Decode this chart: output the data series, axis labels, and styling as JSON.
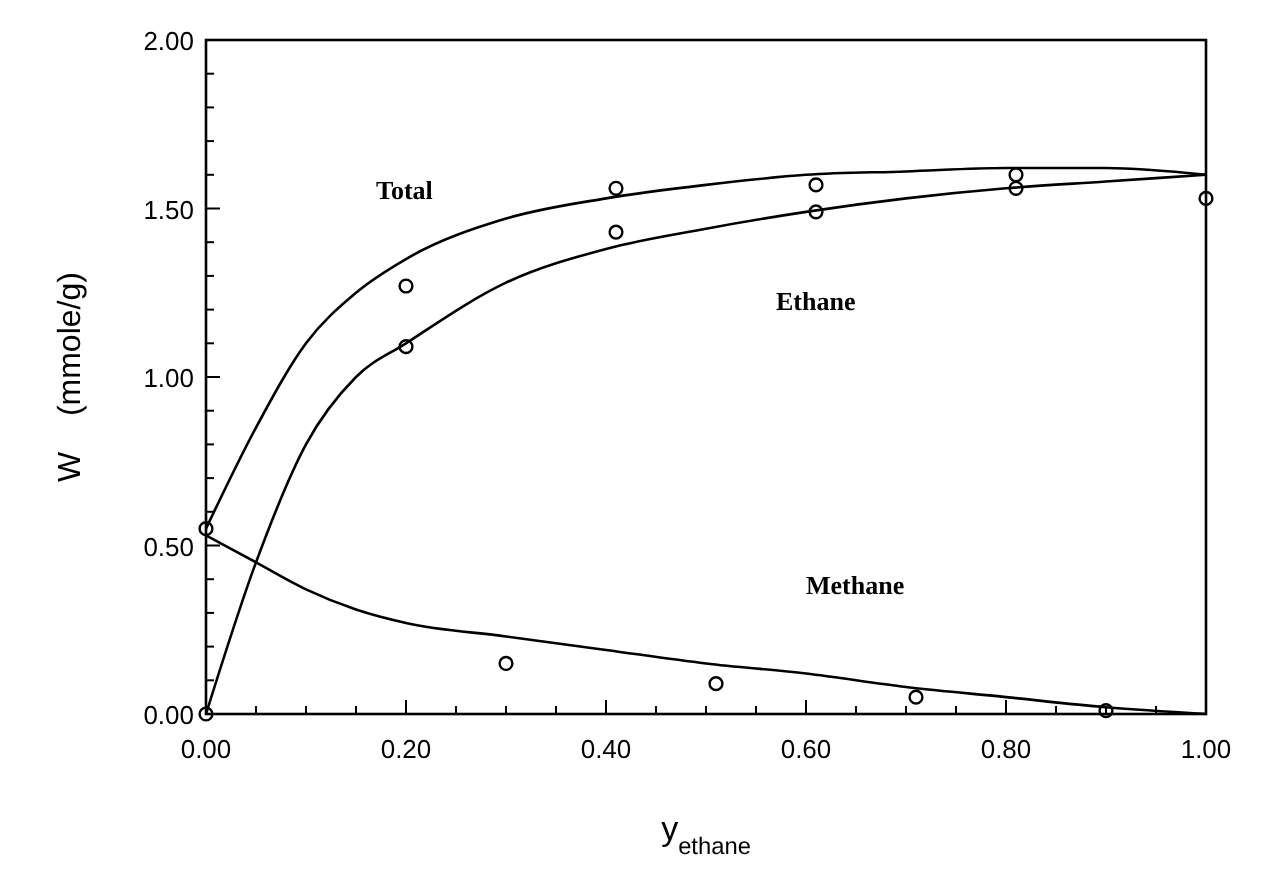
{
  "chart_data": {
    "type": "line",
    "xlabel": "y$_{ethane}$",
    "ylabel": "W    (mmole/g)",
    "xlim": [
      0,
      1
    ],
    "ylim": [
      0,
      2
    ],
    "xticks": [
      {
        "value": 0,
        "label": "0.00"
      },
      {
        "value": 0.05,
        "label": null
      },
      {
        "value": 0.1,
        "label": null
      },
      {
        "value": 0.15,
        "label": null
      },
      {
        "value": 0.2,
        "label": "0.20"
      },
      {
        "value": 0.25,
        "label": null
      },
      {
        "value": 0.3,
        "label": null
      },
      {
        "value": 0.35,
        "label": null
      },
      {
        "value": 0.4,
        "label": "0.40"
      },
      {
        "value": 0.45,
        "label": null
      },
      {
        "value": 0.5,
        "label": null
      },
      {
        "value": 0.55,
        "label": null
      },
      {
        "value": 0.6,
        "label": "0.60"
      },
      {
        "value": 0.65,
        "label": null
      },
      {
        "value": 0.7,
        "label": null
      },
      {
        "value": 0.75,
        "label": null
      },
      {
        "value": 0.8,
        "label": "0.80"
      },
      {
        "value": 0.85,
        "label": null
      },
      {
        "value": 0.9,
        "label": null
      },
      {
        "value": 0.95,
        "label": null
      },
      {
        "value": 1,
        "label": "1.00"
      }
    ],
    "yticks": [
      {
        "value": 0,
        "label": "0.00"
      },
      {
        "value": 0.1,
        "label": null
      },
      {
        "value": 0.2,
        "label": null
      },
      {
        "value": 0.3,
        "label": null
      },
      {
        "value": 0.4,
        "label": null
      },
      {
        "value": 0.5,
        "label": "0.50"
      },
      {
        "value": 0.6,
        "label": null
      },
      {
        "value": 0.7,
        "label": null
      },
      {
        "value": 0.8,
        "label": null
      },
      {
        "value": 0.9,
        "label": null
      },
      {
        "value": 1,
        "label": "1.00"
      },
      {
        "value": 1.1,
        "label": null
      },
      {
        "value": 1.2,
        "label": null
      },
      {
        "value": 1.3,
        "label": null
      },
      {
        "value": 1.4,
        "label": null
      },
      {
        "value": 1.5,
        "label": "1.50"
      },
      {
        "value": 1.6,
        "label": null
      },
      {
        "value": 1.7,
        "label": null
      },
      {
        "value": 1.8,
        "label": null
      },
      {
        "value": 1.9,
        "label": null
      },
      {
        "value": 2,
        "label": "2.00"
      }
    ],
    "grid": false,
    "line_style": "solid",
    "series": [
      {
        "name": "Total",
        "color": "#000000",
        "x": [
          0,
          0.05,
          0.1,
          0.15,
          0.2,
          0.3,
          0.4,
          0.5,
          0.6,
          0.7,
          0.8,
          0.9,
          1
        ],
        "values": [
          0.55,
          0.85,
          1.1,
          1.25,
          1.35,
          1.47,
          1.53,
          1.57,
          1.6,
          1.61,
          1.62,
          1.62,
          1.6
        ]
      },
      {
        "name": "Ethane",
        "color": "#000000",
        "x": [
          0,
          0.05,
          0.1,
          0.15,
          0.2,
          0.3,
          0.4,
          0.5,
          0.6,
          0.7,
          0.8,
          0.9,
          1
        ],
        "values": [
          0,
          0.45,
          0.8,
          1.0,
          1.1,
          1.28,
          1.38,
          1.44,
          1.49,
          1.53,
          1.56,
          1.58,
          1.6
        ]
      },
      {
        "name": "Methane",
        "color": "#000000",
        "x": [
          0,
          0.05,
          0.1,
          0.15,
          0.2,
          0.3,
          0.4,
          0.5,
          0.6,
          0.7,
          0.8,
          0.9,
          1
        ],
        "values": [
          0.53,
          0.45,
          0.37,
          0.31,
          0.27,
          0.23,
          0.19,
          0.15,
          0.12,
          0.08,
          0.05,
          0.02,
          0
        ]
      },
      {
        "type": "scatter",
        "marker": "circle",
        "color": "#000000",
        "x": [
          0,
          0.2,
          0.41,
          0.61,
          0.81,
          1
        ],
        "values": [
          0.55,
          1.27,
          1.56,
          1.57,
          1.6,
          1.53
        ]
      },
      {
        "type": "scatter",
        "marker": "circle",
        "color": "#000000",
        "x": [
          0,
          0.2,
          0.41,
          0.61,
          0.81
        ],
        "values": [
          0,
          1.09,
          1.43,
          1.49,
          1.56
        ]
      },
      {
        "type": "scatter",
        "marker": "circle",
        "color": "#000000",
        "x": [
          0.3,
          0.51,
          0.71,
          0.9
        ],
        "values": [
          0.15,
          0.09,
          0.05,
          0.01
        ]
      }
    ]
  }
}
